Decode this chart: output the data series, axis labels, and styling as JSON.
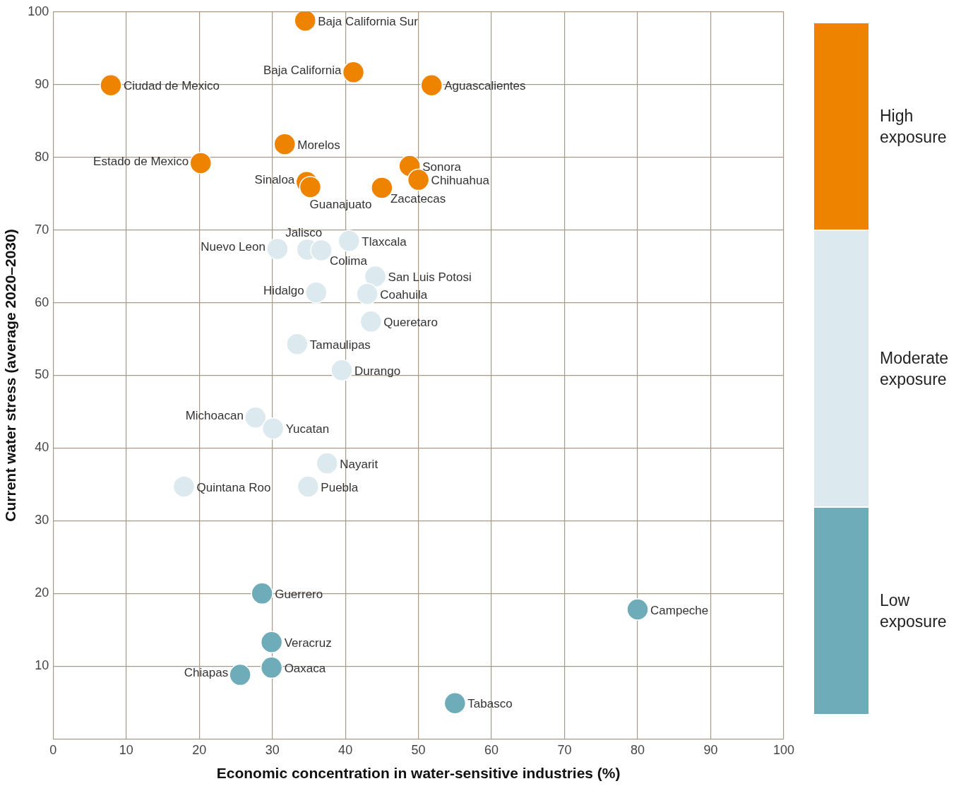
{
  "chart_data": {
    "type": "scatter",
    "xlabel": "Economic concentration in water-sensitive industries (%)",
    "ylabel": "Current water stress (average 2020–2030)",
    "xlim": [
      0,
      100
    ],
    "xticks": [
      0,
      10,
      20,
      30,
      40,
      50,
      60,
      70,
      80,
      90,
      100
    ],
    "ylim": [
      0,
      100
    ],
    "yticks": [
      {
        "value": 0,
        "label": null
      },
      10,
      20,
      30,
      40,
      50,
      60,
      70,
      80,
      90,
      100
    ],
    "grid": true,
    "legend": "right",
    "marker": "circle",
    "series": [
      {
        "name": "High exposure",
        "color": "#ee8300",
        "x": [
          34.5,
          41.1,
          7.9,
          51.8,
          31.7,
          20.2,
          48.8,
          50.0,
          34.7,
          35.2,
          45.0
        ],
        "values": [
          98.8,
          91.7,
          89.9,
          89.9,
          81.8,
          79.2,
          78.8,
          76.9,
          76.6,
          75.9,
          75.8
        ]
      },
      {
        "name": "Moderate exposure",
        "color": "#dce9ee",
        "x": [
          30.7,
          34.8,
          36.7,
          40.5,
          44.1,
          36.0,
          43.0,
          43.5,
          33.4,
          39.5,
          27.7,
          30.1,
          37.5,
          17.9,
          34.9
        ],
        "values": [
          67.4,
          67.3,
          67.2,
          68.5,
          63.6,
          61.4,
          61.2,
          57.4,
          54.3,
          50.7,
          44.2,
          42.7,
          37.9,
          34.7,
          34.7
        ]
      },
      {
        "name": "Low exposure",
        "color": "#6eacba",
        "x": [
          28.6,
          80.0,
          29.9,
          29.9,
          25.6,
          55.0
        ],
        "values": [
          20.0,
          17.8,
          13.3,
          9.8,
          8.8,
          4.9
        ]
      }
    ],
    "annotations": [
      {
        "text": "Baja California Sur",
        "x": 34.5,
        "y": 98.8
      },
      {
        "text": "Baja California",
        "x": 41.1,
        "y": 91.7
      },
      {
        "text": "Ciudad de Mexico",
        "x": 7.9,
        "y": 89.9
      },
      {
        "text": "Aguascalientes",
        "x": 51.8,
        "y": 89.9
      },
      {
        "text": "Morelos",
        "x": 31.7,
        "y": 81.8
      },
      {
        "text": "Estado de Mexico",
        "x": 20.2,
        "y": 79.2
      },
      {
        "text": "Sonora",
        "x": 48.8,
        "y": 78.8
      },
      {
        "text": "Chihuahua",
        "x": 50.0,
        "y": 76.9
      },
      {
        "text": "Sinaloa",
        "x": 34.7,
        "y": 76.6
      },
      {
        "text": "Guanajuato",
        "x": 35.2,
        "y": 75.9
      },
      {
        "text": "Zacatecas",
        "x": 45.0,
        "y": 75.8
      },
      {
        "text": "Nuevo Leon",
        "x": 30.7,
        "y": 67.4
      },
      {
        "text": "Jalisco",
        "x": 34.8,
        "y": 67.3
      },
      {
        "text": "Colima",
        "x": 36.7,
        "y": 67.2
      },
      {
        "text": "Tlaxcala",
        "x": 40.5,
        "y": 68.5
      },
      {
        "text": "San Luis Potosi",
        "x": 44.1,
        "y": 63.6
      },
      {
        "text": "Hidalgo",
        "x": 36.0,
        "y": 61.4
      },
      {
        "text": "Coahuila",
        "x": 43.0,
        "y": 61.2
      },
      {
        "text": "Queretaro",
        "x": 43.5,
        "y": 57.4
      },
      {
        "text": "Tamaulipas",
        "x": 33.4,
        "y": 54.3
      },
      {
        "text": "Durango",
        "x": 39.5,
        "y": 50.7
      },
      {
        "text": "Michoacan",
        "x": 27.7,
        "y": 44.2
      },
      {
        "text": "Yucatan",
        "x": 30.1,
        "y": 42.7
      },
      {
        "text": "Nayarit",
        "x": 37.5,
        "y": 37.9
      },
      {
        "text": "Quintana Roo",
        "x": 17.9,
        "y": 34.7
      },
      {
        "text": "Puebla",
        "x": 34.9,
        "y": 34.7
      },
      {
        "text": "Guerrero",
        "x": 28.6,
        "y": 20.0
      },
      {
        "text": "Campeche",
        "x": 80.0,
        "y": 17.8
      },
      {
        "text": "Veracruz",
        "x": 29.9,
        "y": 13.3
      },
      {
        "text": "Oaxaca",
        "x": 29.9,
        "y": 9.8
      },
      {
        "text": "Chiapas",
        "x": 25.6,
        "y": 8.8
      },
      {
        "text": "Tabasco",
        "x": 55.0,
        "y": 4.9
      }
    ]
  }
}
